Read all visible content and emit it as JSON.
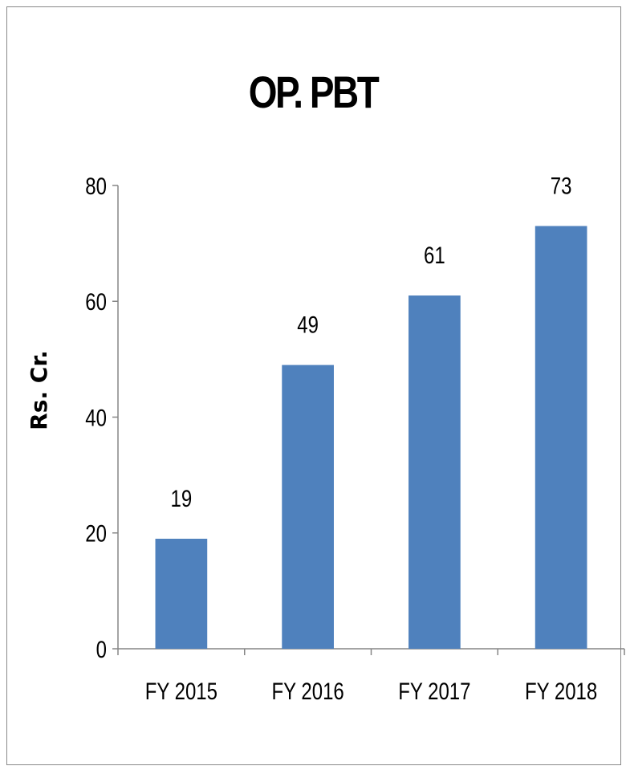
{
  "chart_data": {
    "type": "bar",
    "title": "OP. PBT",
    "ylabel": "Rs. Cr.",
    "xlabel": "",
    "categories": [
      "FY 2015",
      "FY 2016",
      "FY 2017",
      "FY 2018"
    ],
    "values": [
      19,
      49,
      61,
      73
    ],
    "data_labels": [
      "19",
      "49",
      "61",
      "73"
    ],
    "y_ticks": [
      0,
      20,
      40,
      60,
      80
    ],
    "ylim": [
      0,
      80
    ],
    "grid": false,
    "legend": "none",
    "bar_color": "#4F81BD"
  }
}
